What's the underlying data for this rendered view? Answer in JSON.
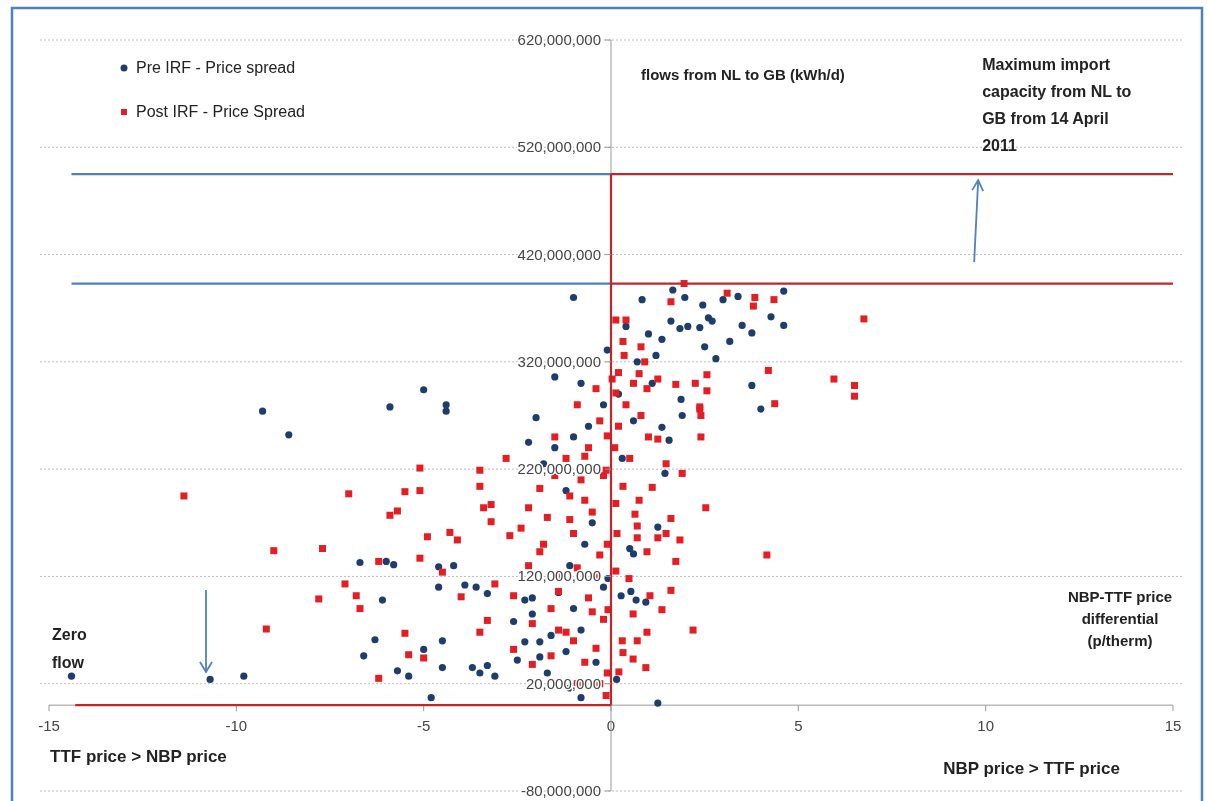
{
  "chart_data": {
    "type": "scatter",
    "xlabel": "NBP-TTF price differential (p/therm)",
    "ylabel": "flows from NL to GB (kWh/d)",
    "xlim": [
      -15,
      15
    ],
    "xticks": [
      -15,
      -10,
      -5,
      0,
      5,
      10,
      15
    ],
    "ylim": [
      -80000000,
      620000000
    ],
    "yticks": [
      {
        "value": -80000000,
        "label": "-80,000,000"
      },
      {
        "value": 20000000,
        "label": "20,000,000"
      },
      {
        "value": 120000000,
        "label": "120,000,000"
      },
      {
        "value": 220000000,
        "label": "220,000,000"
      },
      {
        "value": 320000000,
        "label": "320,000,000"
      },
      {
        "value": 420000000,
        "label": "420,000,000"
      },
      {
        "value": 520000000,
        "label": "520,000,000"
      },
      {
        "value": 620000000,
        "label": "620,000,000"
      }
    ],
    "grid": "y",
    "legend": "top left",
    "annotations": [
      "Zero flow",
      {
        "text": "Maximum import capacity from NL to GB from 14 April 2011",
        "x": 9.8,
        "y": 495000000
      },
      "TTF price > NBP price",
      "NBP price > TTF price"
    ],
    "series": [
      {
        "name": "Pre IRF - Price spread",
        "color": "#1f3d6b",
        "marker": "circle",
        "x": [
          -1.0,
          -9.3,
          -8.6,
          -5.9,
          -5.0,
          -4.4,
          -4.4,
          -2.0,
          -1.5,
          -14.4,
          -10.7,
          -9.8,
          -6.3,
          -6.6,
          -5.7,
          -5.4,
          -4.8,
          -5.0,
          -4.5,
          -4.5,
          -6.7,
          -6.0,
          -5.8,
          -6.1,
          -4.6,
          -4.2,
          -4.6,
          -3.9,
          -3.6,
          -3.3,
          -3.7,
          -3.5,
          -3.3,
          -3.1,
          -2.6,
          -2.3,
          -2.1,
          -2.3,
          -1.9,
          -2.5,
          -1.6,
          -0.8,
          -1.1,
          -2.2,
          1.65,
          0.83,
          1.97,
          2.45,
          2.99,
          3.39,
          4.61,
          4.61,
          4.27,
          3.17,
          2.8,
          2.5,
          1.6,
          1.84,
          2.05,
          2.37,
          2.6,
          2.7,
          3.5,
          3.76,
          1.36,
          1.0,
          1.2,
          0.4,
          -0.1,
          3.76,
          4.0,
          1.87,
          1.9,
          1.55,
          1.36,
          1.44,
          1.25,
          0.6,
          0.5,
          0.67,
          0.93,
          0.27,
          0.53,
          0.15,
          1.25,
          -0.08,
          -1.5,
          -1.0,
          -0.6,
          -1.8,
          -1.2,
          -0.5,
          -1.4,
          -1.0,
          -0.8,
          -1.2,
          -0.4,
          -1.7,
          -0.2,
          0.3,
          0.6,
          0.2,
          -0.2,
          -0.8,
          1.1,
          0.7,
          -2.1,
          -1.9,
          -1.1,
          -0.7
        ],
        "values": [
          380000000,
          274000000,
          252000000,
          278000000,
          294000000,
          280000000,
          274000000,
          268000000,
          306000000,
          27000000,
          24000000,
          27000000,
          61000000,
          46000000,
          32000000,
          27000000,
          7000000,
          52000000,
          60000000,
          35000000,
          133000000,
          134000000,
          131000000,
          98000000,
          129000000,
          130000000,
          110000000,
          112000000,
          110000000,
          104000000,
          35000000,
          30000000,
          37000000,
          27000000,
          78000000,
          98000000,
          100000000,
          59000000,
          59000000,
          42000000,
          65000000,
          7000000,
          16000000,
          245000000,
          387000000,
          378000000,
          380000000,
          373000000,
          378000000,
          381000000,
          386000000,
          354000000,
          362000000,
          339000000,
          323000000,
          334000000,
          358000000,
          351000000,
          353000000,
          352000000,
          361000000,
          358000000,
          354000000,
          347000000,
          341000000,
          346000000,
          326000000,
          353000000,
          331000000,
          298000000,
          276000000,
          285000000,
          270000000,
          247000000,
          259000000,
          216000000,
          166000000,
          141000000,
          146000000,
          98000000,
          96000000,
          102000000,
          106000000,
          24000000,
          2000000,
          118000000,
          240000000,
          250000000,
          260000000,
          225000000,
          200000000,
          170000000,
          105000000,
          90000000,
          70000000,
          50000000,
          40000000,
          30000000,
          110000000,
          230000000,
          265000000,
          290000000,
          280000000,
          300000000,
          300000000,
          320000000,
          85000000,
          45000000,
          130000000,
          150000000
        ]
      },
      {
        "name": "Post IRF - Price Spread",
        "color": "#e31e24",
        "marker": "square",
        "x": [
          -11.4,
          -9.2,
          -9.0,
          -7.7,
          -7.0,
          -7.8,
          -7.1,
          -6.8,
          -6.7,
          -6.2,
          -6.2,
          -5.9,
          -5.7,
          -5.5,
          -5.1,
          -5.1,
          -4.9,
          -5.1,
          -5.5,
          -5.4,
          -5.0,
          -4.5,
          -4.3,
          -4.1,
          -4.0,
          -3.5,
          -3.5,
          -3.4,
          -3.2,
          -3.2,
          -3.5,
          -3.3,
          -3.1,
          -2.8,
          -2.6,
          -2.7,
          -2.4,
          -2.6,
          -2.2,
          -2.1,
          -2.1,
          -1.9,
          -1.9,
          -1.5,
          -1.4,
          -1.6,
          -1.1,
          -1.2,
          -0.9,
          -0.7,
          -0.7,
          -0.5,
          -0.4,
          -0.3,
          -0.1,
          -0.2,
          -0.4,
          -0.1,
          1.95,
          1.6,
          3.1,
          3.84,
          3.8,
          4.35,
          6.75,
          0.13,
          0.4,
          0.32,
          0.8,
          0.35,
          4.2,
          5.95,
          6.5,
          6.5,
          4.37,
          2.56,
          2.56,
          2.25,
          2.37,
          1.73,
          1.25,
          0.75,
          0.03,
          0.96,
          0.13,
          2.37,
          2.4,
          2.4,
          1.25,
          1.9,
          1.47,
          1.1,
          0.75,
          2.53,
          1.6,
          0.32,
          0.64,
          0.7,
          0.7,
          1.84,
          1.25,
          1.47,
          0.96,
          1.73,
          4.16,
          1.6,
          1.04,
          1.36,
          2.19,
          0.96,
          0.7,
          0.59,
          0.59,
          0.93,
          0.21,
          0.32,
          -0.13,
          -0.13,
          0.13,
          0.16,
          0.48,
          0.13,
          -0.08,
          -1.5,
          -1.2,
          -0.8,
          -0.5,
          -1.0,
          -0.3,
          -1.3,
          -0.6,
          -0.2,
          -1.0,
          -0.7,
          0.2,
          0.4,
          0.6,
          0.8,
          -0.4,
          -0.9,
          0.1,
          -1.8,
          -2.2,
          -1.6,
          0.3,
          -0.1,
          1.0,
          0.5,
          -0.3,
          -1.1,
          -1.7,
          0.9,
          0.2,
          -0.6,
          -1.4,
          -0.9
        ],
        "values": [
          195000000,
          71000000,
          144000000,
          146000000,
          197000000,
          99000000,
          113000000,
          102000000,
          90000000,
          134000000,
          25000000,
          177000000,
          181000000,
          199000000,
          221000000,
          200000000,
          157000000,
          137000000,
          67000000,
          47000000,
          44000000,
          124000000,
          161000000,
          154000000,
          101000000,
          219000000,
          204000000,
          184000000,
          187000000,
          171000000,
          68000000,
          79000000,
          113000000,
          230000000,
          52000000,
          158000000,
          165000000,
          102000000,
          184000000,
          76000000,
          38000000,
          202000000,
          143000000,
          214000000,
          106000000,
          46000000,
          173000000,
          68000000,
          128000000,
          191000000,
          232000000,
          87000000,
          53000000,
          20000000,
          150000000,
          214000000,
          120000000,
          251000000,
          393000000,
          376000000,
          384000000,
          380000000,
          372000000,
          378000000,
          360000000,
          359000000,
          359000000,
          339000000,
          334000000,
          326000000,
          312000000,
          304000000,
          298000000,
          288000000,
          281000000,
          308000000,
          293000000,
          300000000,
          276000000,
          299000000,
          304000000,
          309000000,
          304000000,
          295000000,
          291000000,
          278000000,
          270000000,
          250000000,
          248000000,
          216000000,
          225000000,
          203000000,
          191000000,
          184000000,
          174000000,
          204000000,
          178000000,
          167000000,
          156000000,
          154000000,
          156000000,
          160000000,
          143000000,
          134000000,
          140000000,
          107000000,
          102000000,
          89000000,
          70000000,
          68000000,
          60000000,
          85000000,
          43000000,
          35000000,
          31000000,
          49000000,
          9000000,
          219000000,
          188000000,
          160000000,
          118000000,
          125000000,
          89000000,
          250000000,
          230000000,
          210000000,
          180000000,
          160000000,
          140000000,
          120000000,
          100000000,
          80000000,
          60000000,
          40000000,
          260000000,
          280000000,
          300000000,
          270000000,
          295000000,
          280000000,
          240000000,
          150000000,
          130000000,
          90000000,
          60000000,
          30000000,
          250000000,
          230000000,
          265000000,
          195000000,
          175000000,
          320000000,
          310000000,
          240000000,
          70000000,
          20000000
        ]
      },
      {
        "type": "line",
        "color": "#4f81bd",
        "x": [
          -14.4,
          0
        ],
        "values": [
          495000000,
          495000000
        ]
      },
      {
        "type": "line",
        "color": "#4f81bd",
        "x": [
          -14.4,
          0
        ],
        "values": [
          393000000,
          393000000
        ]
      },
      {
        "type": "line",
        "color": "#c0272d",
        "x": [
          0,
          15
        ],
        "values": [
          495000000,
          495000000
        ]
      },
      {
        "type": "line",
        "color": "#c0272d",
        "x": [
          0,
          15
        ],
        "values": [
          393000000,
          393000000
        ]
      },
      {
        "type": "line",
        "color": "#c0272d",
        "x": [
          0,
          0
        ],
        "values": [
          0,
          495000000
        ]
      },
      {
        "type": "line",
        "color": "#c0272d",
        "x": [
          -14.3,
          0
        ],
        "values": [
          0,
          0
        ]
      }
    ]
  }
}
